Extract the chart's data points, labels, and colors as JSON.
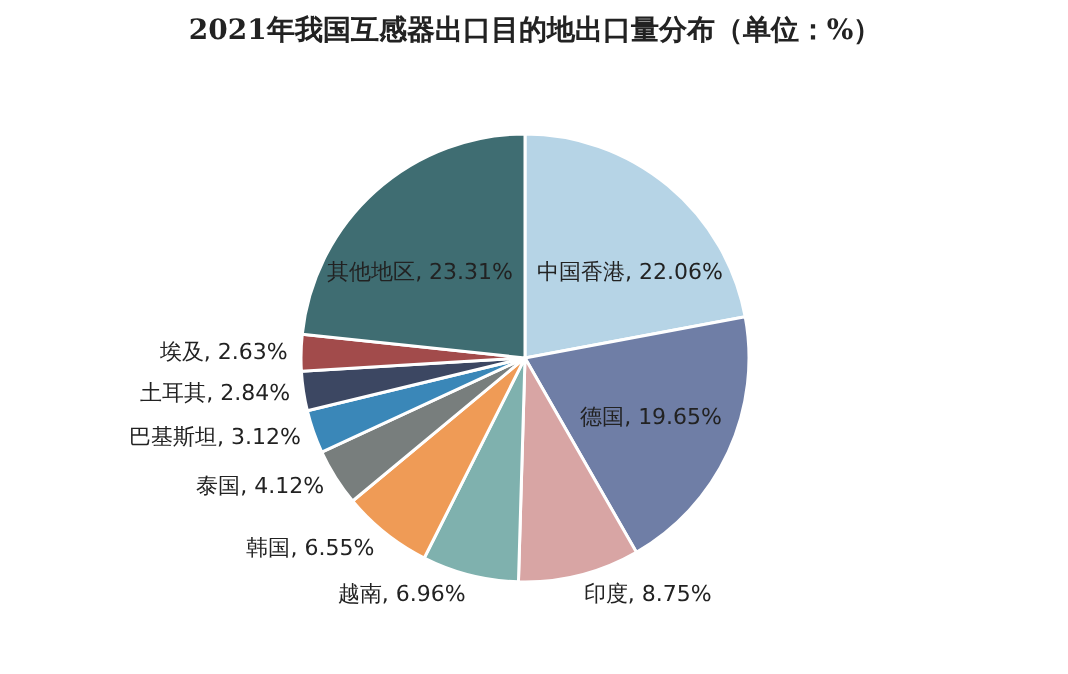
{
  "chart_data": {
    "type": "pie",
    "title": "2021年我国互感器出口目的地出口量分布（单位：%）",
    "categories": [
      "中国香港",
      "德国",
      "印度",
      "越南",
      "韩国",
      "泰国",
      "巴基斯坦",
      "土耳其",
      "埃及",
      "其他地区"
    ],
    "values": [
      22.06,
      19.65,
      8.75,
      6.96,
      6.55,
      4.12,
      3.12,
      2.84,
      2.63,
      23.31
    ],
    "value_labels": [
      "22.06%",
      "19.65%",
      "8.75%",
      "6.96%",
      "6.55%",
      "4.12%",
      "3.12%",
      "2.84%",
      "2.63%",
      "23.31%"
    ],
    "colors": [
      "#b6d4e6",
      "#6f7ea6",
      "#d8a5a4",
      "#7fb1ae",
      "#ef9b56",
      "#787e7d",
      "#3a87b8",
      "#3c4762",
      "#a24b4b",
      "#3f6d72"
    ]
  }
}
